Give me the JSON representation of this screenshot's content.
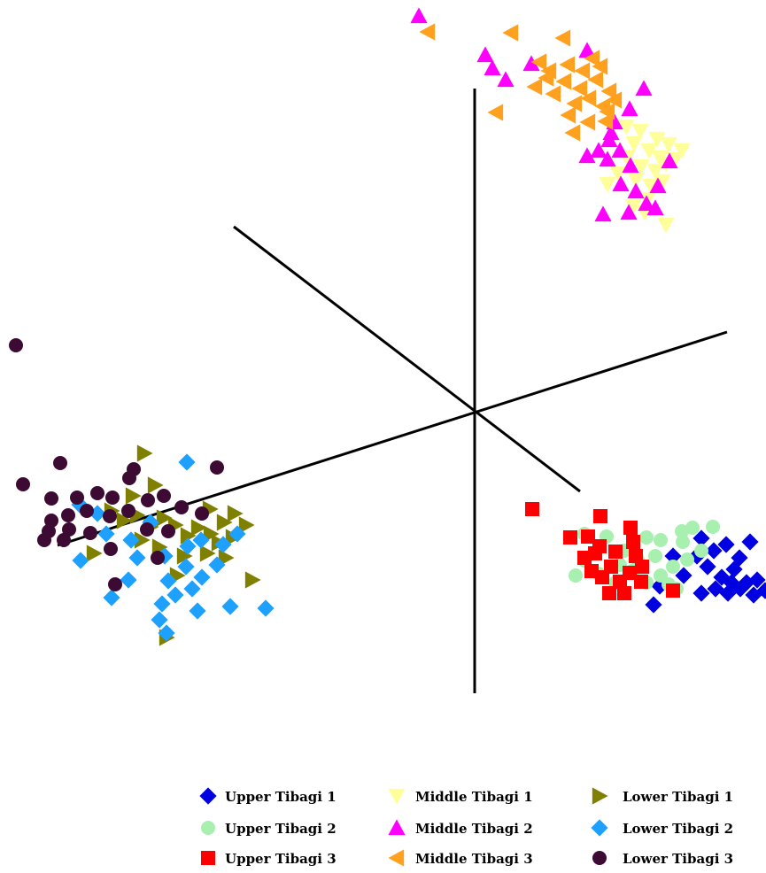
{
  "chart_data": {
    "type": "scatter",
    "projection": "3d-axes",
    "legend_position": "bottom",
    "series": [
      {
        "name": "Upper Tibagi 1",
        "marker": "diamond",
        "color": "#0000e0",
        "points": [
          [
            792,
            608
          ],
          [
            806,
            622
          ],
          [
            820,
            615
          ],
          [
            835,
            630
          ],
          [
            847,
            612
          ],
          [
            799,
            640
          ],
          [
            815,
            652
          ],
          [
            829,
            643
          ],
          [
            843,
            658
          ],
          [
            808,
            665
          ],
          [
            822,
            670
          ],
          [
            836,
            665
          ],
          [
            851,
            672
          ],
          [
            787,
            628
          ],
          [
            826,
            658
          ],
          [
            855,
            655
          ],
          [
            864,
            667
          ],
          [
            772,
            650
          ],
          [
            792,
            670
          ],
          [
            738,
            683
          ],
          [
            745,
            662
          ],
          [
            760,
            628
          ]
        ]
      },
      {
        "name": "Upper Tibagi 2",
        "marker": "circle",
        "color": "#a8f0b0",
        "points": [
          [
            660,
            603
          ],
          [
            685,
            606
          ],
          [
            705,
            622
          ],
          [
            730,
            607
          ],
          [
            746,
            610
          ],
          [
            770,
            600
          ],
          [
            782,
            596
          ],
          [
            805,
            595
          ],
          [
            792,
            622
          ],
          [
            776,
            632
          ],
          [
            760,
            640
          ],
          [
            746,
            650
          ],
          [
            730,
            658
          ],
          [
            714,
            645
          ],
          [
            695,
            658
          ],
          [
            676,
            648
          ],
          [
            660,
            633
          ],
          [
            650,
            650
          ],
          [
            700,
            638
          ],
          [
            771,
            612
          ],
          [
            755,
            660
          ],
          [
            720,
            632
          ],
          [
            740,
            628
          ],
          [
            764,
            665
          ]
        ]
      },
      {
        "name": "Upper Tibagi 3",
        "marker": "square",
        "color": "#ff0000",
        "points": [
          [
            601,
            575
          ],
          [
            678,
            583
          ],
          [
            644,
            607
          ],
          [
            664,
            606
          ],
          [
            712,
            596
          ],
          [
            715,
            612
          ],
          [
            677,
            617
          ],
          [
            695,
            623
          ],
          [
            718,
            628
          ],
          [
            660,
            630
          ],
          [
            668,
            645
          ],
          [
            690,
            640
          ],
          [
            711,
            647
          ],
          [
            725,
            640
          ],
          [
            680,
            652
          ],
          [
            700,
            657
          ],
          [
            724,
            657
          ],
          [
            760,
            667
          ],
          [
            688,
            670
          ],
          [
            672,
            625
          ],
          [
            705,
            670
          ]
        ]
      },
      {
        "name": "Middle Tibagi 1",
        "marker": "triangle-down",
        "color": "#ffff99",
        "points": [
          [
            707,
            143
          ],
          [
            723,
            148
          ],
          [
            742,
            157
          ],
          [
            755,
            163
          ],
          [
            716,
            162
          ],
          [
            733,
            170
          ],
          [
            745,
            178
          ],
          [
            708,
            178
          ],
          [
            724,
            188
          ],
          [
            740,
            193
          ],
          [
            752,
            185
          ],
          [
            762,
            180
          ],
          [
            718,
            203
          ],
          [
            735,
            210
          ],
          [
            748,
            205
          ],
          [
            731,
            225
          ],
          [
            715,
            233
          ],
          [
            752,
            254
          ],
          [
            686,
            208
          ],
          [
            698,
            196
          ],
          [
            770,
            170
          ],
          [
            728,
            240
          ]
        ]
      },
      {
        "name": "Middle Tibagi 2",
        "marker": "triangle-up",
        "color": "#ff00ff",
        "points": [
          [
            473,
            18
          ],
          [
            548,
            62
          ],
          [
            556,
            77
          ],
          [
            571,
            90
          ],
          [
            600,
            72
          ],
          [
            663,
            57
          ],
          [
            727,
            100
          ],
          [
            711,
            123
          ],
          [
            694,
            138
          ],
          [
            688,
            158
          ],
          [
            676,
            170
          ],
          [
            663,
            176
          ],
          [
            686,
            180
          ],
          [
            700,
            170
          ],
          [
            712,
            187
          ],
          [
            701,
            208
          ],
          [
            718,
            216
          ],
          [
            743,
            210
          ],
          [
            730,
            230
          ],
          [
            710,
            240
          ],
          [
            740,
            235
          ],
          [
            681,
            242
          ],
          [
            756,
            182
          ],
          [
            690,
            150
          ]
        ]
      },
      {
        "name": "Middle Tibagi 3",
        "marker": "triangle-left",
        "color": "#ffa01e",
        "points": [
          [
            483,
            36
          ],
          [
            577,
            37
          ],
          [
            636,
            43
          ],
          [
            609,
            70
          ],
          [
            620,
            80
          ],
          [
            641,
            73
          ],
          [
            658,
            80
          ],
          [
            669,
            66
          ],
          [
            678,
            75
          ],
          [
            617,
            88
          ],
          [
            637,
            92
          ],
          [
            655,
            100
          ],
          [
            673,
            90
          ],
          [
            688,
            103
          ],
          [
            625,
            106
          ],
          [
            649,
            117
          ],
          [
            665,
            111
          ],
          [
            681,
            120
          ],
          [
            694,
            113
          ],
          [
            560,
            127
          ],
          [
            642,
            130
          ],
          [
            664,
            138
          ],
          [
            684,
            137
          ],
          [
            647,
            150
          ],
          [
            686,
            126
          ],
          [
            604,
            98
          ]
        ]
      },
      {
        "name": "Lower Tibagi 1",
        "marker": "triangle-right",
        "color": "#808000",
        "points": [
          [
            163,
            512
          ],
          [
            175,
            548
          ],
          [
            126,
            577
          ],
          [
            140,
            588
          ],
          [
            155,
            582
          ],
          [
            170,
            595
          ],
          [
            185,
            585
          ],
          [
            198,
            593
          ],
          [
            212,
            605
          ],
          [
            224,
            596
          ],
          [
            238,
            603
          ],
          [
            253,
            590
          ],
          [
            265,
            580
          ],
          [
            278,
            593
          ],
          [
            263,
            607
          ],
          [
            247,
            613
          ],
          [
            234,
            625
          ],
          [
            255,
            630
          ],
          [
            285,
            655
          ],
          [
            208,
            628
          ],
          [
            200,
            650
          ],
          [
            180,
            618
          ],
          [
            160,
            610
          ],
          [
            188,
            720
          ],
          [
            106,
            625
          ],
          [
            150,
            560
          ],
          [
            237,
            575
          ]
        ]
      },
      {
        "name": "Lower Tibagi 2",
        "marker": "diamond",
        "color": "#1ea0ff",
        "points": [
          [
            211,
            522
          ],
          [
            90,
            570
          ],
          [
            110,
            580
          ],
          [
            170,
            590
          ],
          [
            148,
            610
          ],
          [
            120,
            603
          ],
          [
            91,
            633
          ],
          [
            155,
            630
          ],
          [
            186,
            628
          ],
          [
            212,
            617
          ],
          [
            227,
            610
          ],
          [
            252,
            615
          ],
          [
            268,
            603
          ],
          [
            190,
            656
          ],
          [
            210,
            640
          ],
          [
            228,
            652
          ],
          [
            245,
            638
          ],
          [
            145,
            655
          ],
          [
            126,
            675
          ],
          [
            183,
            682
          ],
          [
            198,
            672
          ],
          [
            223,
            690
          ],
          [
            260,
            685
          ],
          [
            300,
            687
          ],
          [
            180,
            700
          ],
          [
            188,
            715
          ],
          [
            217,
            665
          ]
        ]
      },
      {
        "name": "Lower Tibagi 3",
        "marker": "circle",
        "color": "#3d0a33",
        "points": [
          [
            18,
            390
          ],
          [
            68,
            523
          ],
          [
            26,
            547
          ],
          [
            58,
            563
          ],
          [
            87,
            562
          ],
          [
            110,
            557
          ],
          [
            127,
            562
          ],
          [
            146,
            540
          ],
          [
            151,
            530
          ],
          [
            58,
            588
          ],
          [
            77,
            582
          ],
          [
            98,
            577
          ],
          [
            124,
            583
          ],
          [
            145,
            577
          ],
          [
            167,
            565
          ],
          [
            185,
            560
          ],
          [
            205,
            573
          ],
          [
            228,
            580
          ],
          [
            245,
            528
          ],
          [
            55,
            600
          ],
          [
            78,
            598
          ],
          [
            102,
            602
          ],
          [
            125,
            620
          ],
          [
            166,
            598
          ],
          [
            178,
            630
          ],
          [
            130,
            660
          ],
          [
            50,
            610
          ],
          [
            72,
            610
          ],
          [
            190,
            600
          ]
        ]
      }
    ]
  }
}
